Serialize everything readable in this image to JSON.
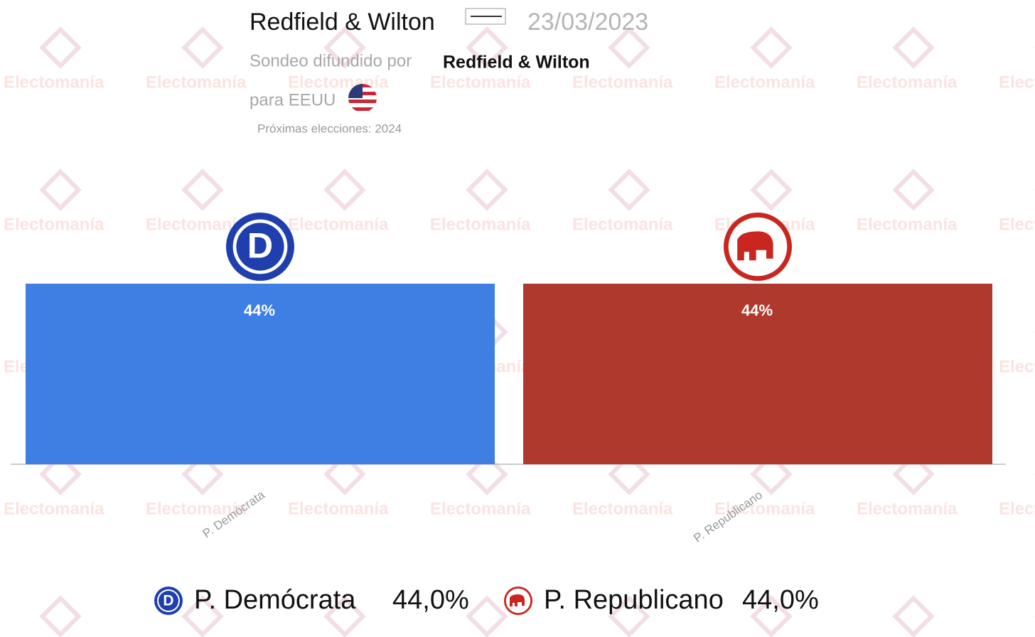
{
  "chart_data": {
    "type": "bar",
    "title": "Redfield & Wilton",
    "date": "23/03/2023",
    "source_prefix": "Sondeo difundido por",
    "source": "Redfield & Wilton",
    "region": "para EEUU",
    "next_election": "Próximas elecciones: 2024",
    "watermark": "Electomanía",
    "categories": [
      "P. Demócrata",
      "P. Republicano"
    ],
    "values": [
      44,
      44
    ],
    "value_labels": [
      "44%",
      "44%"
    ],
    "legend_value_labels": [
      "44,0%",
      "44,0%"
    ],
    "colors": [
      "#3d7fe3",
      "#b0392e"
    ]
  }
}
